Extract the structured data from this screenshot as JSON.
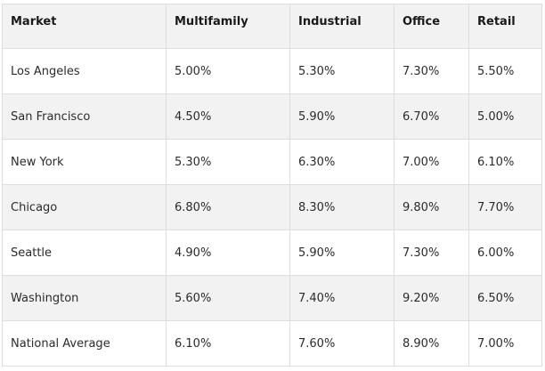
{
  "table": {
    "headers": [
      "Market",
      "Multifamily",
      "Industrial",
      "Office",
      "Retail"
    ],
    "rows": [
      [
        "Los Angeles",
        "5.00%",
        "5.30%",
        "7.30%",
        "5.50%"
      ],
      [
        "San Francisco",
        "4.50%",
        "5.90%",
        "6.70%",
        "5.00%"
      ],
      [
        "New York",
        "5.30%",
        "6.30%",
        "7.00%",
        "6.10%"
      ],
      [
        "Chicago",
        "6.80%",
        "8.30%",
        "9.80%",
        "7.70%"
      ],
      [
        "Seattle",
        "4.90%",
        "5.90%",
        "7.30%",
        "6.00%"
      ],
      [
        "Washington",
        "5.60%",
        "7.40%",
        "9.20%",
        "6.50%"
      ],
      [
        "National Average",
        "6.10%",
        "7.60%",
        "8.90%",
        "7.00%"
      ]
    ]
  },
  "colors": {
    "header_bg": "#f2f2f2",
    "odd_row_bg": "#f2f2f2",
    "even_row_bg": "#ffffff",
    "border": "#dddddd",
    "text": "#242424"
  }
}
